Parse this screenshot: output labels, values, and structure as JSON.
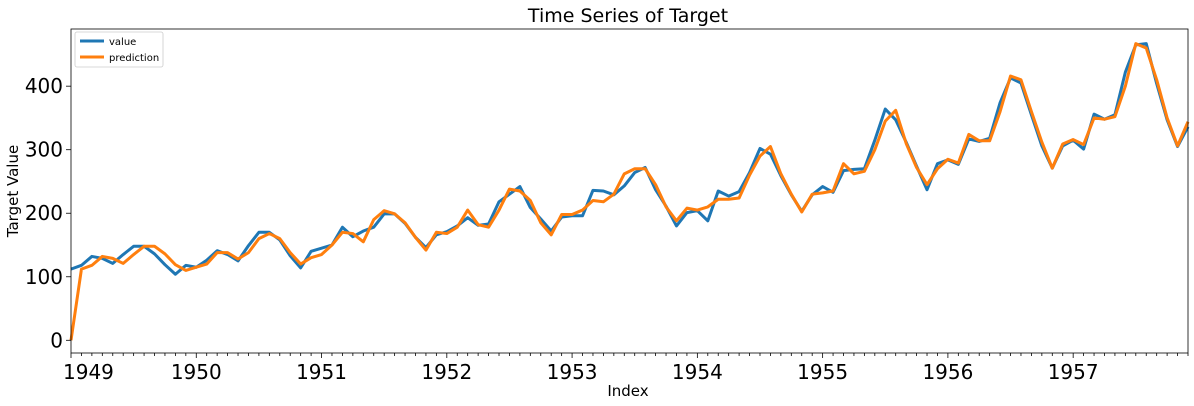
{
  "chart_data": {
    "type": "line",
    "title": "Time Series of Target",
    "xlabel": "Index",
    "ylabel": "Target Value",
    "xlim": [
      "1949-01",
      "1957-12"
    ],
    "ylim": [
      -20,
      490
    ],
    "x_ticks": [
      "1949",
      "1950",
      "1951",
      "1952",
      "1953",
      "1954",
      "1955",
      "1956",
      "1957"
    ],
    "y_ticks": [
      0,
      100,
      200,
      300,
      400
    ],
    "grid": false,
    "legend_position": "top-left",
    "x_start": "1949-01",
    "x_frequency": "monthly",
    "series": [
      {
        "name": "value",
        "color": "#1f77b4",
        "values": [
          112,
          118,
          132,
          129,
          121,
          135,
          148,
          148,
          136,
          119,
          104,
          118,
          115,
          126,
          141,
          135,
          125,
          149,
          170,
          170,
          158,
          133,
          114,
          140,
          145,
          150,
          178,
          163,
          172,
          178,
          199,
          199,
          184,
          162,
          146,
          166,
          171,
          180,
          193,
          181,
          183,
          218,
          230,
          242,
          209,
          191,
          172,
          194,
          196,
          196,
          236,
          235,
          229,
          243,
          264,
          272,
          237,
          211,
          180,
          201,
          204,
          188,
          235,
          227,
          234,
          264,
          302,
          293,
          259,
          229,
          203,
          229,
          242,
          233,
          267,
          269,
          270,
          315,
          364,
          347,
          312,
          274,
          237,
          278,
          284,
          277,
          317,
          313,
          318,
          374,
          413,
          405,
          355,
          306,
          271,
          306,
          315,
          301,
          356,
          348,
          355,
          422,
          465,
          467,
          404,
          347,
          305,
          336
        ]
      },
      {
        "name": "prediction",
        "color": "#ff7f0e",
        "values": [
          0,
          112,
          118,
          132,
          129,
          121,
          135,
          148,
          148,
          136,
          119,
          110,
          115,
          120,
          138,
          138,
          128,
          138,
          160,
          168,
          160,
          138,
          120,
          130,
          135,
          150,
          170,
          168,
          155,
          190,
          204,
          199,
          185,
          162,
          142,
          170,
          168,
          178,
          205,
          182,
          178,
          205,
          238,
          235,
          220,
          185,
          166,
          198,
          198,
          205,
          220,
          218,
          230,
          262,
          270,
          270,
          245,
          210,
          188,
          208,
          205,
          210,
          222,
          222,
          224,
          260,
          290,
          305,
          262,
          230,
          202,
          230,
          232,
          235,
          278,
          262,
          266,
          300,
          345,
          362,
          310,
          272,
          245,
          270,
          285,
          279,
          324,
          314,
          314,
          360,
          416,
          410,
          360,
          312,
          271,
          309,
          316,
          308,
          350,
          348,
          352,
          400,
          467,
          460,
          410,
          350,
          306,
          344
        ]
      }
    ]
  }
}
